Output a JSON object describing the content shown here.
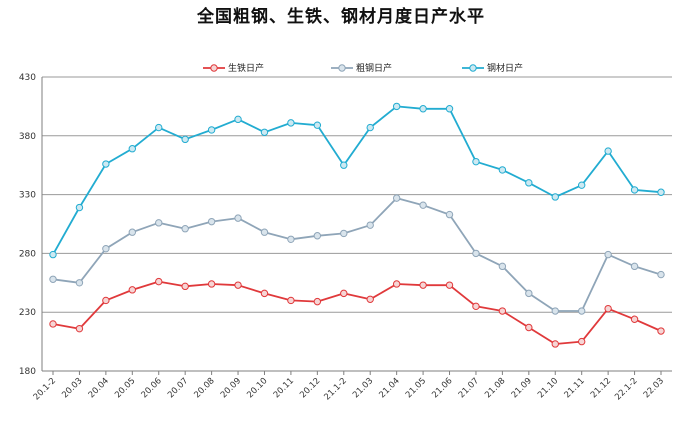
{
  "chart_data": {
    "type": "line",
    "title": "全国粗钢、生铁、钢材月度日产水平",
    "xlabel": "",
    "ylabel": "",
    "ylim": [
      180,
      430
    ],
    "yticks": [
      180,
      230,
      280,
      330,
      380,
      430
    ],
    "grid": true,
    "legend_position": "top",
    "categories": [
      "20.1-2",
      "20.03",
      "20.04",
      "20.05",
      "20.06",
      "20.07",
      "20.08",
      "20.09",
      "20.10",
      "20.11",
      "20.12",
      "21.1-2",
      "21.03",
      "21.04",
      "21.05",
      "21.06",
      "21.07",
      "21.08",
      "21.09",
      "21.10",
      "21.11",
      "21.12",
      "22.1-2",
      "22.03"
    ],
    "series": [
      {
        "name": "生铁日产",
        "color": "#e0393b",
        "fill": "#f6d5d5",
        "values": [
          220,
          216,
          240,
          249,
          256,
          252,
          254,
          253,
          246,
          240,
          239,
          246,
          241,
          254,
          253,
          253,
          235,
          231,
          217,
          203,
          205,
          233,
          224,
          214
        ]
      },
      {
        "name": "粗钢日产",
        "color": "#8fa5b8",
        "fill": "#d9e4ec",
        "values": [
          258,
          255,
          284,
          298,
          306,
          301,
          307,
          310,
          298,
          292,
          295,
          297,
          304,
          327,
          321,
          313,
          280,
          269,
          246,
          231,
          231,
          279,
          269,
          262
        ]
      },
      {
        "name": "钢材日产",
        "color": "#22acd1",
        "fill": "#cde9f2",
        "values": [
          279,
          319,
          356,
          369,
          387,
          377,
          385,
          394,
          383,
          391,
          389,
          355,
          387,
          405,
          403,
          403,
          358,
          351,
          340,
          328,
          338,
          367,
          334,
          332
        ]
      }
    ]
  }
}
